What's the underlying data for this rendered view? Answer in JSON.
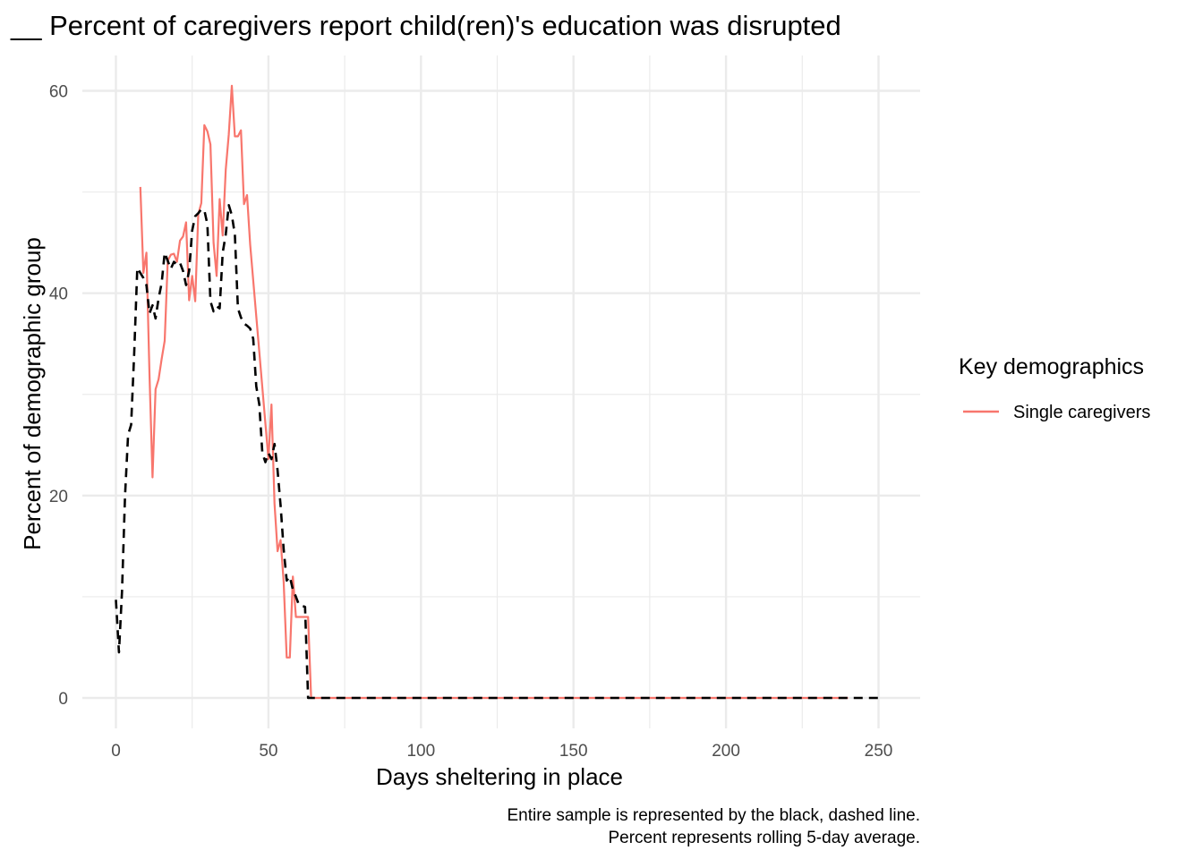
{
  "chart_data": {
    "type": "line",
    "title": "__ Percent of caregivers report child(ren)'s education was disrupted",
    "xlabel": "Days sheltering in place",
    "ylabel": "Percent of demographic group",
    "xlim": [
      -6,
      262
    ],
    "ylim": [
      -6,
      64
    ],
    "xticks": [
      0,
      50,
      100,
      150,
      200,
      250
    ],
    "yticks": [
      0,
      20,
      40,
      60
    ],
    "xtick_labels": [
      "0",
      "50",
      "100",
      "150",
      "200",
      "250"
    ],
    "ytick_labels": [
      "0",
      "20",
      "40",
      "60"
    ],
    "grid": true,
    "legend": {
      "title": "Key demographics",
      "position": "right",
      "entries": [
        "Single caregivers"
      ]
    },
    "caption": [
      "Entire sample is represented by the black, dashed line.",
      "Percent represents rolling 5-day average."
    ],
    "series": [
      {
        "name": "Single caregivers",
        "color": "#F8766D",
        "style": "solid",
        "x": [
          8,
          9,
          10,
          11,
          12,
          13,
          14,
          15,
          16,
          17,
          18,
          19,
          20,
          21,
          22,
          23,
          24,
          25,
          26,
          27,
          28,
          29,
          30,
          31,
          32,
          33,
          34,
          35,
          36,
          37,
          38,
          39,
          40,
          41,
          42,
          43,
          44,
          50,
          51,
          52,
          53,
          54,
          55,
          56,
          57,
          58,
          59,
          60,
          61,
          62,
          63,
          64,
          70,
          75,
          80,
          85,
          90,
          100,
          110,
          120,
          130,
          140,
          150,
          160,
          170,
          180,
          190,
          200,
          210,
          220,
          230,
          240
        ],
        "y": [
          50.5,
          42,
          44,
          32,
          21.8,
          30.5,
          31.5,
          33.5,
          35.3,
          43.2,
          43.8,
          43.9,
          43.1,
          45.2,
          45.6,
          47,
          39.3,
          41.7,
          39.2,
          47.8,
          48.9,
          56.6,
          56,
          54.7,
          45,
          41.7,
          49.3,
          45.7,
          52.2,
          55.7,
          60.5,
          55.5,
          55.5,
          56.1,
          48.8,
          49.7,
          44.8,
          23.6,
          29,
          19.2,
          14.5,
          15.6,
          11.5,
          4,
          4,
          12,
          8,
          8,
          8,
          8,
          8,
          0,
          0,
          0,
          0,
          0,
          0,
          0,
          0,
          0,
          0,
          0,
          0,
          0,
          0,
          0,
          0,
          0,
          0,
          0,
          0,
          0
        ]
      },
      {
        "name": "",
        "color": "#000000",
        "style": "dashed",
        "x": [
          0,
          1,
          2,
          3,
          4,
          5,
          6,
          7,
          8,
          9,
          10,
          11,
          12,
          13,
          14,
          15,
          16,
          17,
          18,
          19,
          20,
          21,
          22,
          23,
          24,
          25,
          26,
          27,
          28,
          29,
          30,
          31,
          32,
          33,
          34,
          35,
          36,
          37,
          38,
          39,
          40,
          41,
          42,
          43,
          44,
          45,
          46,
          47,
          48,
          49,
          50,
          51,
          52,
          53,
          54,
          55,
          56,
          57,
          58,
          59,
          60,
          61,
          62,
          63,
          64,
          70,
          80,
          100,
          150,
          200,
          250
        ],
        "y": [
          9.7,
          4.5,
          10.5,
          20,
          26,
          27,
          34,
          42.5,
          42,
          41.5,
          40.8,
          38,
          38.8,
          37.5,
          39.5,
          41,
          44,
          43.2,
          42.4,
          43.1,
          42.8,
          43,
          42.2,
          40.8,
          42.2,
          46.2,
          47.6,
          47.9,
          48.3,
          48.2,
          46.8,
          39.2,
          38.2,
          38.7,
          38.5,
          44,
          45.8,
          48.7,
          47.7,
          45.8,
          38.5,
          37.6,
          37,
          36.8,
          36.5,
          35.5,
          30.8,
          29,
          24.2,
          23.3,
          24.2,
          23.6,
          25.1,
          22.5,
          19,
          14.7,
          11.6,
          12,
          10.7,
          10,
          9.2,
          9.1,
          9,
          0,
          0,
          0,
          0,
          0,
          0,
          0,
          0
        ]
      }
    ]
  }
}
